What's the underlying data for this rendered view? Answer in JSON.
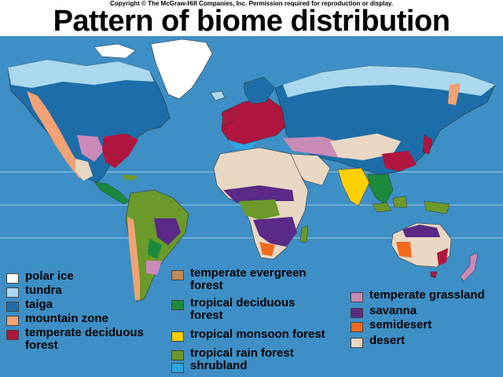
{
  "copyright": "Copyright © The McGraw-Hill Companies, Inc. Permission required for reproduction or display.",
  "title": "Pattern of biome distribution",
  "colors": {
    "ocean": "#3d8fc6",
    "grid": "#9ec9e6",
    "polar_ice": "#ffffff",
    "tundra": "#a9d8ef",
    "taiga": "#1d6ea8",
    "mountain_zone": "#f2a274",
    "temperate_deciduous_forest": "#b0163f",
    "temperate_evergreen_forest": "#c08a56",
    "tropical_deciduous_forest": "#1b8a3c",
    "tropical_monsoon_forest": "#ffd000",
    "tropical_rain_forest": "#6b9a2a",
    "shrubland": "#2aa6e0",
    "temperate_grassland": "#c98ab8",
    "savanna": "#5a2a86",
    "semidesert": "#f26b1d",
    "desert": "#e8d7c3"
  },
  "legend": {
    "polar_ice": "polar ice",
    "tundra": "tundra",
    "taiga": "taiga",
    "mountain_zone": "mountain zone",
    "temperate_deciduous_forest_line1": "temperate deciduous",
    "temperate_deciduous_forest_line2": "forest",
    "temperate_evergreen_forest_line1": "temperate evergreen",
    "temperate_evergreen_forest_line2": "forest",
    "tropical_deciduous_forest_line1": "tropical deciduous",
    "tropical_deciduous_forest_line2": "forest",
    "tropical_monsoon_forest": "tropical monsoon forest",
    "tropical_rain_forest": "tropical rain forest",
    "shrubland": "shrubland",
    "temperate_grassland": "temperate grassland",
    "savanna": "savanna",
    "semidesert": "semidesert",
    "desert": "desert"
  }
}
